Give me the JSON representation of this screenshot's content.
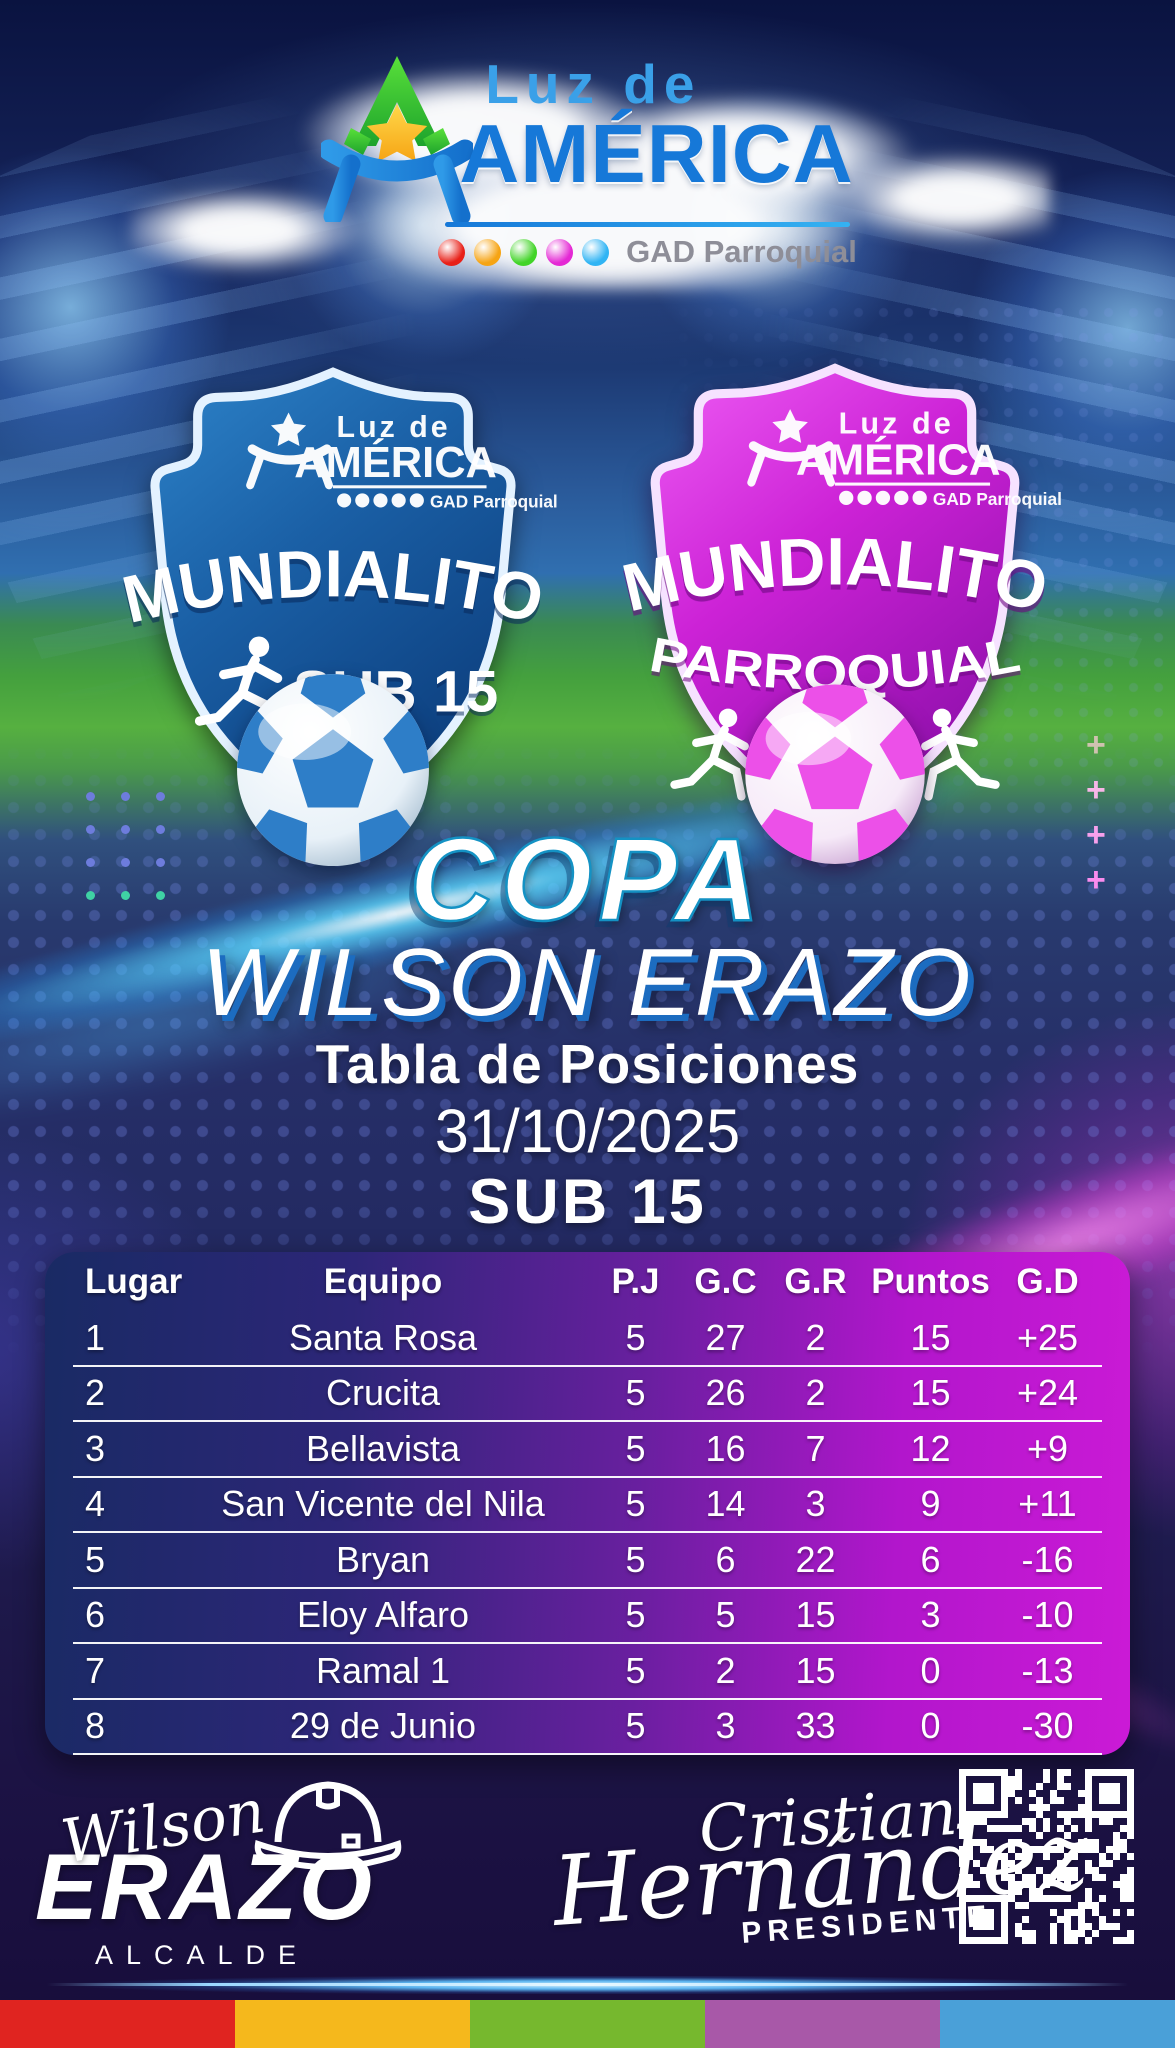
{
  "brand": {
    "luz_de": "Luz de",
    "america": "AMÉRICA",
    "tagline": "GAD Parroquial",
    "dot_colors": [
      "#e82018",
      "#f6a414",
      "#42d428",
      "#e428d4",
      "#30b4f4"
    ],
    "america_blue": "#1678d8",
    "luz_blue": "#3aa0e8"
  },
  "badge_blue": {
    "luz_de": "Luz de",
    "america": "AMÉRICA",
    "tagline": "GAD Parroquial",
    "title": "MUNDIALITO",
    "subtitle": "SUB 15",
    "color_main": "#1b5ea6"
  },
  "badge_magenta": {
    "luz_de": "Luz de",
    "america": "AMÉRICA",
    "tagline": "GAD Parroquial",
    "title": "MUNDIALITO",
    "subtitle": "PARROQUIAL",
    "color_main": "#cc22d6"
  },
  "heading": {
    "cup": "COPA",
    "cup_name": "WILSON ERAZO",
    "subtitle": "Tabla de Posiciones",
    "date": "31/10/2025",
    "category": "SUB 15"
  },
  "standings": {
    "headers": [
      "Lugar",
      "Equipo",
      "P.J",
      "G.C",
      "G.R",
      "Puntos",
      "G.D"
    ],
    "rows": [
      [
        "1",
        "Santa Rosa",
        "5",
        "27",
        "2",
        "15",
        "+25"
      ],
      [
        "2",
        "Crucita",
        "5",
        "26",
        "2",
        "15",
        "+24"
      ],
      [
        "3",
        "Bellavista",
        "5",
        "16",
        "7",
        "12",
        "+9"
      ],
      [
        "4",
        "San Vicente del Nila",
        "5",
        "14",
        "3",
        "9",
        "+11"
      ],
      [
        "5",
        "Bryan",
        "5",
        "6",
        "22",
        "6",
        "-16"
      ],
      [
        "6",
        "Eloy Alfaro",
        "5",
        "5",
        "15",
        "3",
        "-10"
      ],
      [
        "7",
        "Ramal 1",
        "5",
        "2",
        "15",
        "0",
        "-13"
      ],
      [
        "8",
        "29 de Junio",
        "5",
        "3",
        "33",
        "0",
        "-30"
      ]
    ]
  },
  "footer": {
    "mayor_first": "Wilson",
    "mayor_last": "ERAZO",
    "mayor_role": "ALCALDE",
    "president_first": "Cristian",
    "president_last": "Hernández",
    "president_role": "PRESIDENTE"
  },
  "strip_colors": [
    "#e02420",
    "#f5b81c",
    "#76b82e",
    "#a858a8",
    "#4aa0d8"
  ]
}
